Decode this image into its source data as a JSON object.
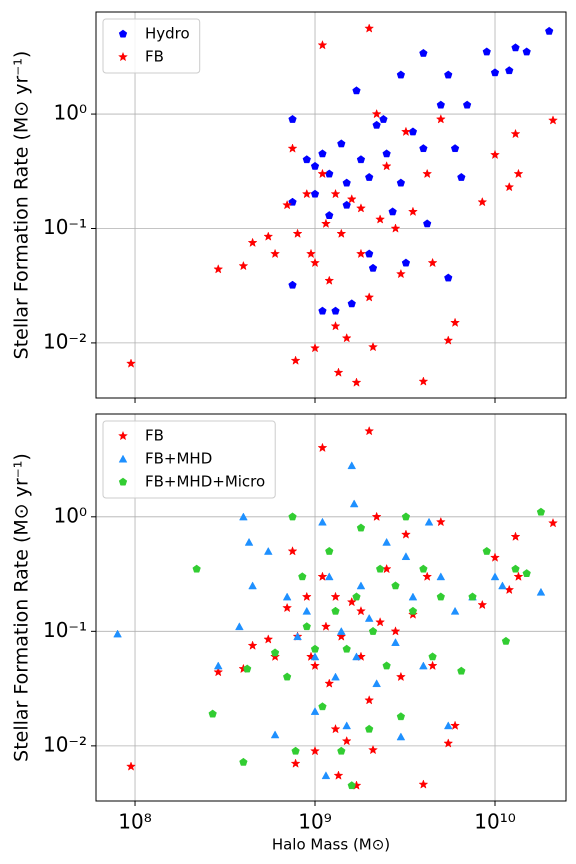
{
  "chart_data": [
    {
      "type": "scatter",
      "y_label": "Stellar Formation Rate (M⊙ yr⁻¹)",
      "xscale": "log",
      "yscale": "log",
      "grid": true,
      "legend": "upper left",
      "x_tick_labels": false,
      "xlim": [
        60700000.0,
        24800000000.0
      ],
      "ylim": [
        0.0033,
        7.8
      ],
      "xticks": [
        100000000,
        1000000000,
        10000000000
      ],
      "yticks": [
        {
          "value": 0.01,
          "label": "10⁻²"
        },
        {
          "value": 0.1,
          "label": "10⁻¹"
        },
        {
          "value": 1,
          "label": "10⁰"
        }
      ],
      "series": [
        {
          "name": "Hydro",
          "color": "#0000ff",
          "marker": "pentagon",
          "x": [
            750000000.0,
            750000000.0,
            750000000.0,
            900000000.0,
            1000000000.0,
            1000000000.0,
            1100000000.0,
            1200000000.0,
            1200000000.0,
            1100000000.0,
            1300000000.0,
            1400000000.0,
            1500000000.0,
            1500000000.0,
            1600000000.0,
            1700000000.0,
            1800000000.0,
            2000000000.0,
            2000000000.0,
            2100000000.0,
            2200000000.0,
            2400000000.0,
            2500000000.0,
            2700000000.0,
            3000000000.0,
            3000000000.0,
            3200000000.0,
            3500000000.0,
            4000000000.0,
            4000000000.0,
            4200000000.0,
            5000000000.0,
            5500000000.0,
            5500000000.0,
            6000000000.0,
            6500000000.0,
            7000000000.0,
            9000000000.0,
            10000000000.0,
            12000000000.0,
            13000000000.0,
            15000000000.0,
            20000000000.0
          ],
          "y": [
            0.9,
            0.17,
            0.032,
            0.4,
            0.35,
            0.2,
            0.45,
            0.3,
            0.13,
            0.019,
            0.019,
            0.55,
            0.25,
            0.16,
            0.022,
            1.6,
            0.4,
            0.28,
            0.06,
            0.045,
            0.8,
            0.9,
            0.45,
            0.14,
            2.2,
            0.25,
            0.05,
            0.7,
            3.4,
            0.5,
            0.11,
            1.2,
            2.2,
            0.037,
            0.5,
            0.28,
            1.2,
            3.5,
            2.3,
            2.4,
            3.8,
            3.5,
            5.3
          ]
        },
        {
          "name": "FB",
          "color": "#ff0000",
          "marker": "star",
          "x": [
            95000000.0,
            290000000.0,
            400000000.0,
            450000000.0,
            550000000.0,
            600000000.0,
            700000000.0,
            750000000.0,
            780000000.0,
            800000000.0,
            900000000.0,
            950000000.0,
            1000000000.0,
            1000000000.0,
            1100000000.0,
            1100000000.0,
            1150000000.0,
            1200000000.0,
            1300000000.0,
            1300000000.0,
            1350000000.0,
            1400000000.0,
            1500000000.0,
            1600000000.0,
            1700000000.0,
            1800000000.0,
            1800000000.0,
            2000000000.0,
            2000000000.0,
            2100000000.0,
            2200000000.0,
            2300000000.0,
            2500000000.0,
            2800000000.0,
            3000000000.0,
            3200000000.0,
            3500000000.0,
            4000000000.0,
            4200000000.0,
            4500000000.0,
            5000000000.0,
            5500000000.0,
            6000000000.0,
            8500000000.0,
            10000000000.0,
            12000000000.0,
            13000000000.0,
            13500000000.0,
            21000000000.0
          ],
          "y": [
            0.0066,
            0.044,
            0.047,
            0.075,
            0.085,
            0.06,
            0.16,
            0.5,
            0.007,
            0.09,
            0.2,
            0.06,
            0.009,
            0.05,
            4,
            0.3,
            0.11,
            0.035,
            0.014,
            0.2,
            0.0055,
            0.09,
            0.011,
            0.18,
            0.0045,
            0.06,
            0.15,
            5.6,
            0.025,
            0.0092,
            1,
            0.12,
            0.35,
            0.1,
            0.04,
            0.7,
            0.14,
            0.0046,
            0.3,
            0.05,
            0.9,
            0.0105,
            0.015,
            0.17,
            0.44,
            0.23,
            0.67,
            0.3,
            0.88
          ]
        }
      ]
    },
    {
      "type": "scatter",
      "y_label": "Stellar Formation Rate (M⊙ yr⁻¹)",
      "x_label": "Halo Mass (M⊙)",
      "xscale": "log",
      "yscale": "log",
      "grid": true,
      "legend": "upper left",
      "x_tick_labels": true,
      "xlim": [
        60700000.0,
        24800000000.0
      ],
      "ylim": [
        0.0033,
        7.9
      ],
      "xticks": [
        {
          "value": 100000000,
          "label": "10⁸"
        },
        {
          "value": 1000000000,
          "label": "10⁹"
        },
        {
          "value": 10000000000,
          "label": "10¹⁰"
        }
      ],
      "yticks": [
        {
          "value": 0.01,
          "label": "10⁻²"
        },
        {
          "value": 0.1,
          "label": "10⁻¹"
        },
        {
          "value": 1,
          "label": "10⁰"
        }
      ],
      "series": [
        {
          "name": "FB",
          "color": "#ff0000",
          "marker": "star",
          "x": [
            95000000.0,
            290000000.0,
            400000000.0,
            450000000.0,
            550000000.0,
            600000000.0,
            700000000.0,
            750000000.0,
            780000000.0,
            800000000.0,
            900000000.0,
            950000000.0,
            1000000000.0,
            1000000000.0,
            1100000000.0,
            1100000000.0,
            1150000000.0,
            1200000000.0,
            1300000000.0,
            1300000000.0,
            1350000000.0,
            1400000000.0,
            1500000000.0,
            1600000000.0,
            1700000000.0,
            1800000000.0,
            1800000000.0,
            2000000000.0,
            2000000000.0,
            2100000000.0,
            2200000000.0,
            2300000000.0,
            2500000000.0,
            2800000000.0,
            3000000000.0,
            3200000000.0,
            3500000000.0,
            4000000000.0,
            4200000000.0,
            4500000000.0,
            5000000000.0,
            5500000000.0,
            6000000000.0,
            8500000000.0,
            10000000000.0,
            12000000000.0,
            13000000000.0,
            13500000000.0,
            21000000000.0
          ],
          "y": [
            0.0066,
            0.044,
            0.047,
            0.075,
            0.085,
            0.06,
            0.16,
            0.5,
            0.007,
            0.09,
            0.2,
            0.06,
            0.009,
            0.05,
            4,
            0.3,
            0.11,
            0.035,
            0.014,
            0.2,
            0.0055,
            0.09,
            0.011,
            0.18,
            0.0045,
            0.06,
            0.15,
            5.6,
            0.025,
            0.0092,
            1,
            0.12,
            0.35,
            0.1,
            0.04,
            0.7,
            0.14,
            0.0046,
            0.3,
            0.05,
            0.9,
            0.0105,
            0.015,
            0.17,
            0.44,
            0.23,
            0.67,
            0.3,
            0.88
          ]
        },
        {
          "name": "FB+MHD",
          "color": "#1e90ff",
          "marker": "triangle",
          "x": [
            80000000.0,
            290000000.0,
            380000000.0,
            400000000.0,
            430000000.0,
            450000000.0,
            550000000.0,
            600000000.0,
            700000000.0,
            800000000.0,
            900000000.0,
            1000000000.0,
            1000000000.0,
            1100000000.0,
            1150000000.0,
            1200000000.0,
            1300000000.0,
            1400000000.0,
            1500000000.0,
            1600000000.0,
            1650000000.0,
            1700000000.0,
            1800000000.0,
            2000000000.0,
            2200000000.0,
            2500000000.0,
            2800000000.0,
            3000000000.0,
            3200000000.0,
            3500000000.0,
            4000000000.0,
            4300000000.0,
            5000000000.0,
            5500000000.0,
            6000000000.0,
            7500000000.0,
            10000000000.0,
            11000000000.0,
            18000000000.0
          ],
          "y": [
            0.095,
            0.05,
            0.11,
            1.0,
            0.6,
            0.25,
            0.5,
            0.0125,
            0.2,
            0.09,
            0.15,
            0.02,
            0.06,
            0.9,
            0.0055,
            0.3,
            0.04,
            0.1,
            0.015,
            2.8,
            1.3,
            0.06,
            0.25,
            0.13,
            0.035,
            0.6,
            0.08,
            0.012,
            0.45,
            0.2,
            0.05,
            0.9,
            0.3,
            0.015,
            0.15,
            0.2,
            0.3,
            0.25,
            0.22
          ]
        },
        {
          "name": "FB+MHD+Micro",
          "color": "#32cd32",
          "marker": "pentagon",
          "x": [
            220000000.0,
            270000000.0,
            400000000.0,
            420000000.0,
            600000000.0,
            700000000.0,
            750000000.0,
            780000000.0,
            850000000.0,
            900000000.0,
            1000000000.0,
            1100000000.0,
            1200000000.0,
            1300000000.0,
            1400000000.0,
            1500000000.0,
            1600000000.0,
            1700000000.0,
            1800000000.0,
            2000000000.0,
            2100000000.0,
            2300000000.0,
            2500000000.0,
            2800000000.0,
            3000000000.0,
            3200000000.0,
            3500000000.0,
            4000000000.0,
            4500000000.0,
            5000000000.0,
            6500000000.0,
            7500000000.0,
            9000000000.0,
            11500000000.0,
            13000000000.0,
            15000000000.0,
            18000000000.0
          ],
          "y": [
            0.35,
            0.019,
            0.0072,
            0.047,
            0.065,
            0.04,
            1.0,
            0.009,
            0.3,
            0.11,
            0.07,
            0.022,
            0.5,
            0.15,
            0.009,
            0.07,
            0.0045,
            0.2,
            0.8,
            0.014,
            0.1,
            0.35,
            0.05,
            0.25,
            0.018,
            1.0,
            0.15,
            0.35,
            0.06,
            0.2,
            0.045,
            0.2,
            0.5,
            0.082,
            0.35,
            0.32,
            1.1
          ]
        }
      ]
    }
  ]
}
